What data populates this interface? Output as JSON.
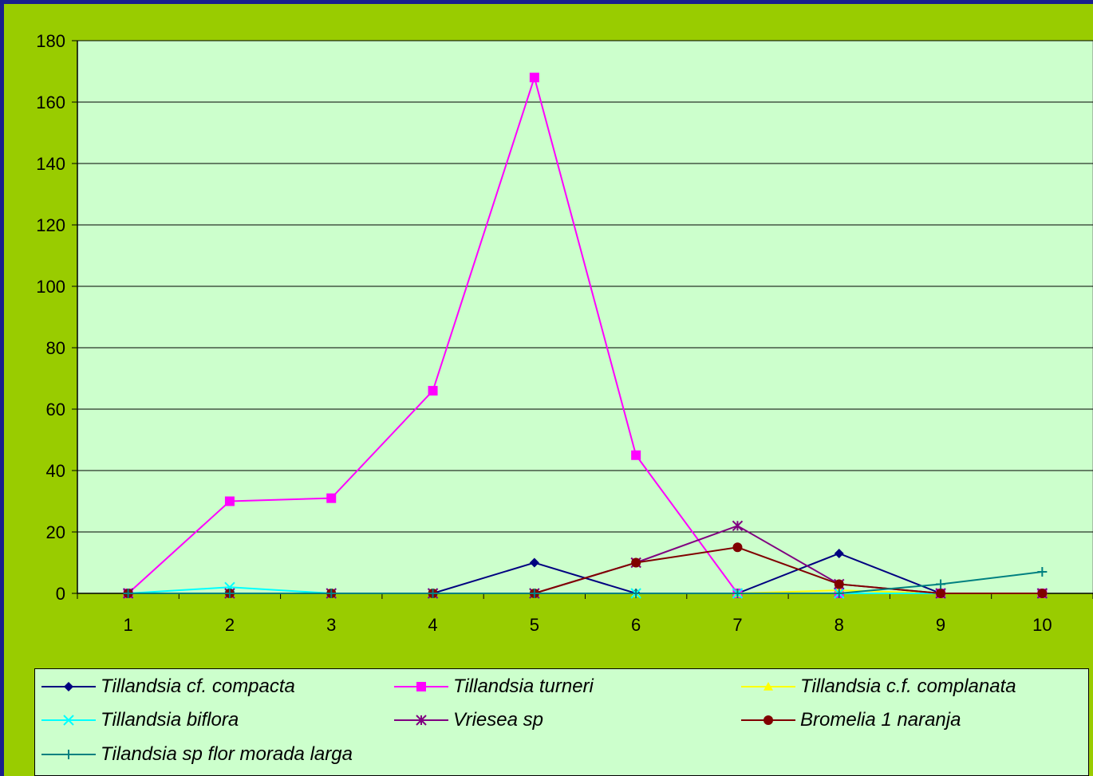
{
  "chart_data": {
    "type": "line",
    "title": "",
    "xlabel": "",
    "ylabel": "",
    "categories": [
      "1",
      "2",
      "3",
      "4",
      "5",
      "6",
      "7",
      "8",
      "9",
      "10"
    ],
    "ylim": [
      0,
      180
    ],
    "yticks": [
      0,
      20,
      40,
      60,
      80,
      100,
      120,
      140,
      160,
      180
    ],
    "grid": "horizontal",
    "legend_position": "bottom",
    "colors": {
      "page_background": "#1a1f8c",
      "chart_area": "#99cc00",
      "plot_area": "#ccffcc"
    },
    "series": [
      {
        "name": "Tillandsia cf. compacta",
        "color": "#000080",
        "marker": "diamond",
        "values": [
          0,
          0,
          0,
          0,
          10,
          0,
          0,
          13,
          0,
          0
        ]
      },
      {
        "name": "Tillandsia turneri",
        "color": "#ff00ff",
        "marker": "square",
        "values": [
          0,
          30,
          31,
          66,
          168,
          45,
          0,
          0,
          0,
          0
        ]
      },
      {
        "name": "Tillandsia c.f. complanata",
        "color": "#ffff00",
        "marker": "triangle",
        "values": [
          0,
          0,
          0,
          0,
          0,
          0,
          0,
          1,
          0,
          0
        ]
      },
      {
        "name": "Tillandsia biflora",
        "color": "#00ffff",
        "marker": "x",
        "values": [
          0,
          2,
          0,
          0,
          0,
          0,
          0,
          0,
          0,
          0
        ]
      },
      {
        "name": "Vriesea sp",
        "color": "#800080",
        "marker": "star",
        "values": [
          0,
          0,
          0,
          0,
          0,
          10,
          22,
          3,
          0,
          0
        ]
      },
      {
        "name": "Bromelia 1 naranja",
        "color": "#800000",
        "marker": "circle",
        "values": [
          0,
          0,
          0,
          0,
          0,
          10,
          15,
          3,
          0,
          0
        ]
      },
      {
        "name": "Tilandsia sp flor morada larga",
        "color": "#008080",
        "marker": "plus",
        "values": [
          0,
          0,
          0,
          0,
          0,
          0,
          0,
          0,
          3,
          7
        ]
      }
    ]
  }
}
